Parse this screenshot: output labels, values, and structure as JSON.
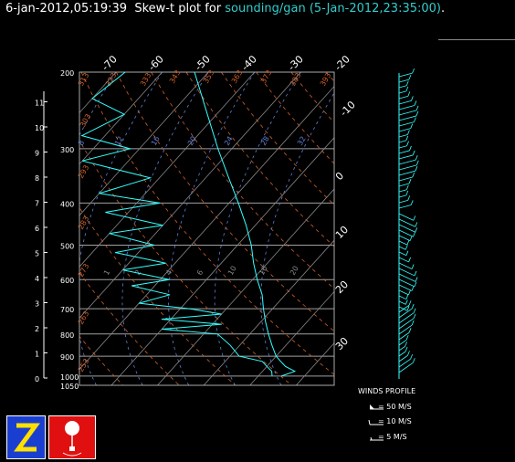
{
  "header": {
    "timestamp": "6-jan-2012,05:19:39",
    "plot_label": "Skew-t plot for",
    "sounding": "sounding/gan",
    "sounding_time": "(5-Jan-2012,23:35:00)",
    "end": "."
  },
  "legend": {
    "title": "WINDS PROFILE",
    "rows": [
      "= 50 M/S",
      "= 10 M/S",
      "= 5 M/S"
    ]
  },
  "colors": {
    "temperature": "#33ffff",
    "dewpoint": "#33ffff",
    "isotherm": "#888888",
    "dry_adiabat": "#d0602a",
    "moist_adiabat": "#5f7fd6",
    "mixing_ratio": "#5f7fd6",
    "isobar": "#a0a0a0"
  },
  "icons": [
    "zebra-z-logo",
    "weather-balloon-logo"
  ],
  "chart_data": {
    "type": "line",
    "title": "",
    "pressure_levels": [
      200,
      300,
      400,
      500,
      600,
      700,
      800,
      900,
      1000,
      1050
    ],
    "height_km_ticks": [
      0,
      1,
      2,
      3,
      4,
      5,
      6,
      7,
      8,
      9,
      10,
      11
    ],
    "temperature_ticks_top": [
      -70,
      -60,
      -50,
      -40,
      -30,
      -20
    ],
    "temperature_ticks_right": [
      -10,
      0,
      10,
      20,
      30
    ],
    "dry_adiabat_labels": [
      "313",
      "323",
      "333",
      "343",
      "353",
      "363",
      "373",
      "383",
      "393",
      "303",
      "293",
      "283",
      "273",
      "263",
      "253"
    ],
    "moist_adiabat_labels": [
      "8",
      "12",
      "16",
      "20",
      "24",
      "28",
      "32"
    ],
    "mixing_ratio_labels": [
      "1",
      "2",
      "4",
      "6",
      "10",
      "16",
      "20"
    ],
    "series": [
      {
        "name": "temperature",
        "points": [
          [
            1000,
            25
          ],
          [
            975,
            27
          ],
          [
            950,
            24
          ],
          [
            925,
            22
          ],
          [
            900,
            20
          ],
          [
            850,
            17
          ],
          [
            800,
            14
          ],
          [
            750,
            11
          ],
          [
            700,
            8
          ],
          [
            650,
            5
          ],
          [
            600,
            1
          ],
          [
            550,
            -3
          ],
          [
            500,
            -7
          ],
          [
            450,
            -12
          ],
          [
            400,
            -18
          ],
          [
            350,
            -25
          ],
          [
            300,
            -33
          ],
          [
            250,
            -42
          ],
          [
            200,
            -53
          ]
        ]
      },
      {
        "name": "dewpoint",
        "points": [
          [
            1000,
            23
          ],
          [
            975,
            22
          ],
          [
            950,
            20
          ],
          [
            925,
            18
          ],
          [
            900,
            12
          ],
          [
            850,
            8
          ],
          [
            800,
            3
          ],
          [
            780,
            -10
          ],
          [
            760,
            2
          ],
          [
            740,
            -12
          ],
          [
            720,
            0
          ],
          [
            700,
            -8
          ],
          [
            680,
            -20
          ],
          [
            650,
            -15
          ],
          [
            620,
            -25
          ],
          [
            600,
            -18
          ],
          [
            570,
            -30
          ],
          [
            550,
            -22
          ],
          [
            520,
            -35
          ],
          [
            500,
            -28
          ],
          [
            470,
            -40
          ],
          [
            450,
            -30
          ],
          [
            420,
            -45
          ],
          [
            400,
            -35
          ],
          [
            380,
            -50
          ],
          [
            350,
            -42
          ],
          [
            320,
            -60
          ],
          [
            300,
            -52
          ],
          [
            280,
            -65
          ],
          [
            250,
            -60
          ],
          [
            230,
            -70
          ],
          [
            200,
            -68
          ]
        ]
      }
    ],
    "wind_profile": "wind barbs by height"
  }
}
